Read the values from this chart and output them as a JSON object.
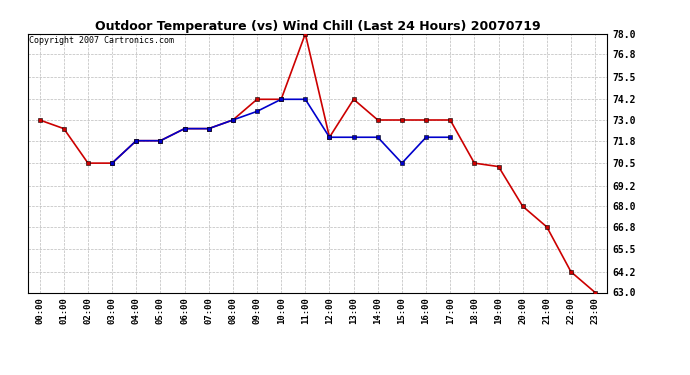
{
  "title": "Outdoor Temperature (vs) Wind Chill (Last 24 Hours) 20070719",
  "copyright": "Copyright 2007 Cartronics.com",
  "hours": [
    "00:00",
    "01:00",
    "02:00",
    "03:00",
    "04:00",
    "05:00",
    "06:00",
    "07:00",
    "08:00",
    "09:00",
    "10:00",
    "11:00",
    "12:00",
    "13:00",
    "14:00",
    "15:00",
    "16:00",
    "17:00",
    "18:00",
    "19:00",
    "20:00",
    "21:00",
    "22:00",
    "23:00"
  ],
  "temp": [
    73.0,
    72.5,
    70.5,
    70.5,
    71.8,
    71.8,
    72.5,
    72.5,
    73.0,
    74.2,
    74.2,
    78.0,
    72.0,
    74.2,
    73.0,
    73.0,
    73.0,
    73.0,
    70.5,
    70.3,
    68.0,
    66.8,
    64.2,
    63.0
  ],
  "windchill": [
    null,
    null,
    null,
    70.5,
    71.8,
    71.8,
    72.5,
    72.5,
    73.0,
    73.5,
    74.2,
    74.2,
    72.0,
    72.0,
    72.0,
    70.5,
    72.0,
    72.0,
    null,
    null,
    null,
    null,
    null,
    null
  ],
  "ylim_min": 63.0,
  "ylim_max": 78.0,
  "yticks": [
    63.0,
    64.2,
    65.5,
    66.8,
    68.0,
    69.2,
    70.5,
    71.8,
    73.0,
    74.2,
    75.5,
    76.8,
    78.0
  ],
  "temp_color": "#cc0000",
  "windchill_color": "#0000cc",
  "bg_color": "#ffffff",
  "grid_color": "#bbbbbb",
  "marker_size": 3,
  "line_width": 1.2,
  "title_fontsize": 9,
  "copyright_fontsize": 6,
  "ytick_fontsize": 7,
  "xtick_fontsize": 6.5
}
